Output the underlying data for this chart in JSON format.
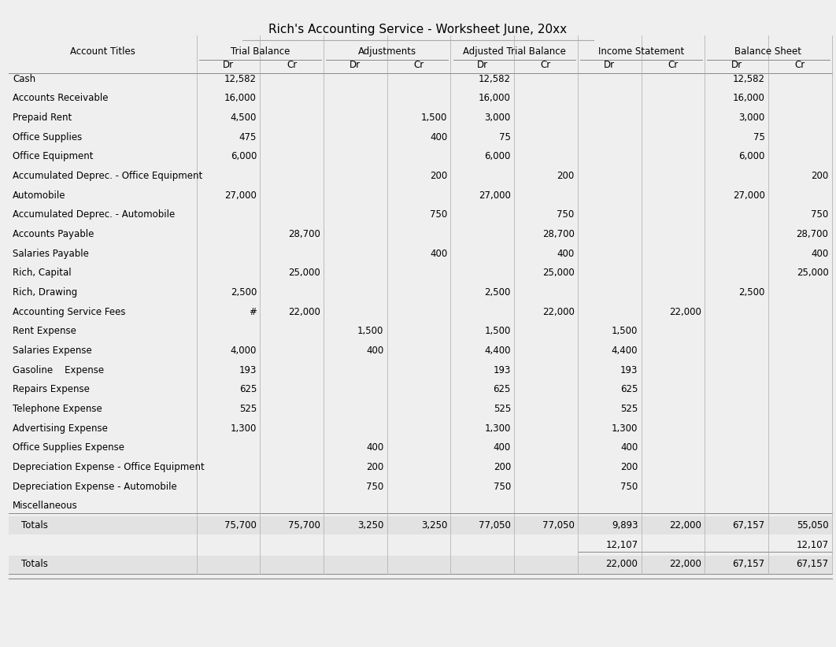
{
  "title": "Rich's Accounting Service - Worksheet June, 20xx",
  "col_groups": [
    "Trial Balance",
    "Adjustments",
    "Adjusted Trial Balance",
    "Income Statement",
    "Balance Sheet"
  ],
  "col_headers": [
    "Dr",
    "Cr",
    "Dr",
    "Cr",
    "Dr",
    "Cr",
    "Dr",
    "Cr",
    "Dr",
    "Cr"
  ],
  "account_col_header": "Account Titles",
  "rows": [
    {
      "account": "Cash",
      "tb_dr": "12,582",
      "tb_cr": "",
      "adj_dr": "",
      "adj_cr": "",
      "atb_dr": "12,582",
      "atb_cr": "",
      "is_dr": "",
      "is_cr": "",
      "bs_dr": "12,582",
      "bs_cr": ""
    },
    {
      "account": "Accounts Receivable",
      "tb_dr": "16,000",
      "tb_cr": "",
      "adj_dr": "",
      "adj_cr": "",
      "atb_dr": "16,000",
      "atb_cr": "",
      "is_dr": "",
      "is_cr": "",
      "bs_dr": "16,000",
      "bs_cr": ""
    },
    {
      "account": "Prepaid Rent",
      "tb_dr": "4,500",
      "tb_cr": "",
      "adj_dr": "",
      "adj_cr": "1,500",
      "atb_dr": "3,000",
      "atb_cr": "",
      "is_dr": "",
      "is_cr": "",
      "bs_dr": "3,000",
      "bs_cr": ""
    },
    {
      "account": "Office Supplies",
      "tb_dr": "475",
      "tb_cr": "",
      "adj_dr": "",
      "adj_cr": "400",
      "atb_dr": "75",
      "atb_cr": "",
      "is_dr": "",
      "is_cr": "",
      "bs_dr": "75",
      "bs_cr": ""
    },
    {
      "account": "Office Equipment",
      "tb_dr": "6,000",
      "tb_cr": "",
      "adj_dr": "",
      "adj_cr": "",
      "atb_dr": "6,000",
      "atb_cr": "",
      "is_dr": "",
      "is_cr": "",
      "bs_dr": "6,000",
      "bs_cr": ""
    },
    {
      "account": "Accumulated Deprec. - Office Equipment",
      "tb_dr": "",
      "tb_cr": "",
      "adj_dr": "",
      "adj_cr": "200",
      "atb_dr": "",
      "atb_cr": "200",
      "is_dr": "",
      "is_cr": "",
      "bs_dr": "",
      "bs_cr": "200"
    },
    {
      "account": "Automobile",
      "tb_dr": "27,000",
      "tb_cr": "",
      "adj_dr": "",
      "adj_cr": "",
      "atb_dr": "27,000",
      "atb_cr": "",
      "is_dr": "",
      "is_cr": "",
      "bs_dr": "27,000",
      "bs_cr": ""
    },
    {
      "account": "Accumulated Deprec. - Automobile",
      "tb_dr": "",
      "tb_cr": "",
      "adj_dr": "",
      "adj_cr": "750",
      "atb_dr": "",
      "atb_cr": "750",
      "is_dr": "",
      "is_cr": "",
      "bs_dr": "",
      "bs_cr": "750"
    },
    {
      "account": "Accounts Payable",
      "tb_dr": "",
      "tb_cr": "28,700",
      "adj_dr": "",
      "adj_cr": "",
      "atb_dr": "",
      "atb_cr": "28,700",
      "is_dr": "",
      "is_cr": "",
      "bs_dr": "",
      "bs_cr": "28,700"
    },
    {
      "account": "Salaries Payable",
      "tb_dr": "",
      "tb_cr": "",
      "adj_dr": "",
      "adj_cr": "400",
      "atb_dr": "",
      "atb_cr": "400",
      "is_dr": "",
      "is_cr": "",
      "bs_dr": "",
      "bs_cr": "400"
    },
    {
      "account": "Rich, Capital",
      "tb_dr": "",
      "tb_cr": "25,000",
      "adj_dr": "",
      "adj_cr": "",
      "atb_dr": "",
      "atb_cr": "25,000",
      "is_dr": "",
      "is_cr": "",
      "bs_dr": "",
      "bs_cr": "25,000"
    },
    {
      "account": "Rich, Drawing",
      "tb_dr": "2,500",
      "tb_cr": "",
      "adj_dr": "",
      "adj_cr": "",
      "atb_dr": "2,500",
      "atb_cr": "",
      "is_dr": "",
      "is_cr": "",
      "bs_dr": "2,500",
      "bs_cr": ""
    },
    {
      "account": "Accounting Service Fees",
      "tb_dr": "#",
      "tb_cr": "22,000",
      "adj_dr": "",
      "adj_cr": "",
      "atb_dr": "",
      "atb_cr": "22,000",
      "is_dr": "",
      "is_cr": "22,000",
      "bs_dr": "",
      "bs_cr": ""
    },
    {
      "account": "Rent Expense",
      "tb_dr": "",
      "tb_cr": "",
      "adj_dr": "1,500",
      "adj_cr": "",
      "atb_dr": "1,500",
      "atb_cr": "",
      "is_dr": "1,500",
      "is_cr": "",
      "bs_dr": "",
      "bs_cr": ""
    },
    {
      "account": "Salaries Expense",
      "tb_dr": "4,000",
      "tb_cr": "",
      "adj_dr": "400",
      "adj_cr": "",
      "atb_dr": "4,400",
      "atb_cr": "",
      "is_dr": "4,400",
      "is_cr": "",
      "bs_dr": "",
      "bs_cr": ""
    },
    {
      "account": "Gasoline    Expense",
      "tb_dr": "193",
      "tb_cr": "",
      "adj_dr": "",
      "adj_cr": "",
      "atb_dr": "193",
      "atb_cr": "",
      "is_dr": "193",
      "is_cr": "",
      "bs_dr": "",
      "bs_cr": ""
    },
    {
      "account": "Repairs Expense",
      "tb_dr": "625",
      "tb_cr": "",
      "adj_dr": "",
      "adj_cr": "",
      "atb_dr": "625",
      "atb_cr": "",
      "is_dr": "625",
      "is_cr": "",
      "bs_dr": "",
      "bs_cr": ""
    },
    {
      "account": "Telephone Expense",
      "tb_dr": "525",
      "tb_cr": "",
      "adj_dr": "",
      "adj_cr": "",
      "atb_dr": "525",
      "atb_cr": "",
      "is_dr": "525",
      "is_cr": "",
      "bs_dr": "",
      "bs_cr": ""
    },
    {
      "account": "Advertising Expense",
      "tb_dr": "1,300",
      "tb_cr": "",
      "adj_dr": "",
      "adj_cr": "",
      "atb_dr": "1,300",
      "atb_cr": "",
      "is_dr": "1,300",
      "is_cr": "",
      "bs_dr": "",
      "bs_cr": ""
    },
    {
      "account": "Office Supplies Expense",
      "tb_dr": "",
      "tb_cr": "",
      "adj_dr": "400",
      "adj_cr": "",
      "atb_dr": "400",
      "atb_cr": "",
      "is_dr": "400",
      "is_cr": "",
      "bs_dr": "",
      "bs_cr": ""
    },
    {
      "account": "Depreciation Expense - Office Equipment",
      "tb_dr": "",
      "tb_cr": "",
      "adj_dr": "200",
      "adj_cr": "",
      "atb_dr": "200",
      "atb_cr": "",
      "is_dr": "200",
      "is_cr": "",
      "bs_dr": "",
      "bs_cr": ""
    },
    {
      "account": "Depreciation Expense - Automobile",
      "tb_dr": "",
      "tb_cr": "",
      "adj_dr": "750",
      "adj_cr": "",
      "atb_dr": "750",
      "atb_cr": "",
      "is_dr": "750",
      "is_cr": "",
      "bs_dr": "",
      "bs_cr": ""
    },
    {
      "account": "Miscellaneous",
      "tb_dr": "",
      "tb_cr": "",
      "adj_dr": "",
      "adj_cr": "",
      "atb_dr": "",
      "atb_cr": "",
      "is_dr": "",
      "is_cr": "",
      "bs_dr": "",
      "bs_cr": ""
    }
  ],
  "totals_row1": {
    "account": "Totals",
    "tb_dr": "75,700",
    "tb_cr": "75,700",
    "adj_dr": "3,250",
    "adj_cr": "3,250",
    "atb_dr": "77,050",
    "atb_cr": "77,050",
    "is_dr": "9,893",
    "is_cr": "22,000",
    "bs_dr": "67,157",
    "bs_cr": "55,050"
  },
  "net_income_row": {
    "is_dr": "12,107",
    "bs_cr": "12,107"
  },
  "totals_row2": {
    "account": "Totals",
    "is_dr": "22,000",
    "is_cr": "22,000",
    "bs_dr": "67,157",
    "bs_cr": "67,157"
  },
  "bg_color": "#efefef",
  "title_color": "#000000",
  "text_color": "#000000",
  "line_color": "#999999",
  "font_size": 8.5,
  "header_font_size": 8.5,
  "title_font_size": 11
}
